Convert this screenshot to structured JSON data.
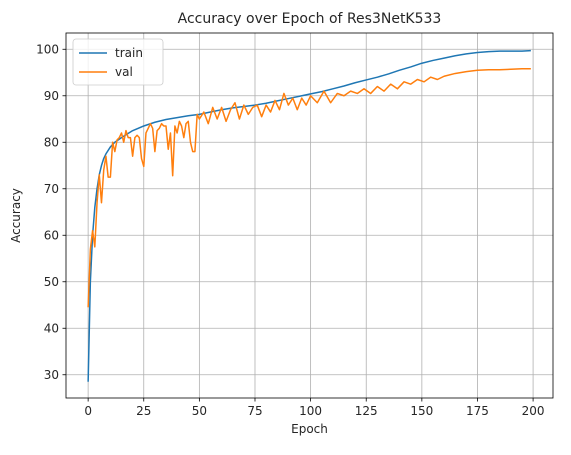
{
  "chart_data": {
    "type": "line",
    "title": "Accuracy over Epoch of Res3NetK533",
    "xlabel": "Epoch",
    "ylabel": "Accuracy",
    "xlim": [
      -9.95,
      208.95
    ],
    "ylim": [
      25.0,
      103.5
    ],
    "xticks": [
      0,
      25,
      50,
      75,
      100,
      125,
      150,
      175,
      200
    ],
    "yticks": [
      30,
      40,
      50,
      60,
      70,
      80,
      90,
      100
    ],
    "grid": true,
    "legend_position": "top-left",
    "series": [
      {
        "name": "train",
        "color": "#1f77b4",
        "x": [
          0,
          1,
          2,
          3,
          4,
          5,
          6,
          7,
          8,
          10,
          12,
          15,
          20,
          25,
          30,
          35,
          40,
          45,
          50,
          55,
          60,
          65,
          70,
          75,
          80,
          85,
          90,
          95,
          100,
          105,
          110,
          115,
          120,
          125,
          130,
          135,
          140,
          145,
          150,
          155,
          160,
          165,
          170,
          175,
          180,
          185,
          190,
          195,
          199
        ],
        "y": [
          28.5,
          50.0,
          60.0,
          66.0,
          70.0,
          73.0,
          75.0,
          76.5,
          77.5,
          79.0,
          80.0,
          81.0,
          82.5,
          83.5,
          84.3,
          84.9,
          85.3,
          85.7,
          86.0,
          86.5,
          87.0,
          87.4,
          87.7,
          88.0,
          88.4,
          88.9,
          89.4,
          89.9,
          90.4,
          90.9,
          91.5,
          92.1,
          92.8,
          93.4,
          94.0,
          94.7,
          95.5,
          96.2,
          97.0,
          97.6,
          98.1,
          98.6,
          99.0,
          99.3,
          99.5,
          99.6,
          99.6,
          99.6,
          99.7
        ]
      },
      {
        "name": "val",
        "color": "#ff7f0e",
        "x": [
          0,
          1,
          2,
          3,
          4,
          5,
          6,
          7,
          8,
          9,
          10,
          11,
          12,
          13,
          14,
          15,
          16,
          17,
          18,
          19,
          20,
          21,
          22,
          23,
          24,
          25,
          26,
          27,
          28,
          29,
          30,
          31,
          32,
          33,
          34,
          35,
          36,
          37,
          38,
          39,
          40,
          41,
          42,
          43,
          44,
          45,
          46,
          47,
          48,
          49,
          50,
          52,
          54,
          56,
          58,
          60,
          62,
          64,
          66,
          68,
          70,
          72,
          74,
          76,
          78,
          80,
          82,
          84,
          86,
          88,
          90,
          92,
          94,
          96,
          98,
          100,
          103,
          106,
          109,
          112,
          115,
          118,
          121,
          124,
          127,
          130,
          133,
          136,
          139,
          142,
          145,
          148,
          151,
          154,
          157,
          160,
          165,
          170,
          175,
          180,
          185,
          190,
          195,
          199
        ],
        "y": [
          44.5,
          57.0,
          61.0,
          57.5,
          67.0,
          73.0,
          67.0,
          74.0,
          77.0,
          72.5,
          72.5,
          80.0,
          78.0,
          80.5,
          81.0,
          82.0,
          80.0,
          82.5,
          81.0,
          81.0,
          77.0,
          81.0,
          81.5,
          81.0,
          76.5,
          74.8,
          82.0,
          83.0,
          84.0,
          83.0,
          78.0,
          82.5,
          83.0,
          84.0,
          83.5,
          83.5,
          78.5,
          82.0,
          72.8,
          83.5,
          82.0,
          84.5,
          83.5,
          81.0,
          84.0,
          84.5,
          80.0,
          78.0,
          78.0,
          86.0,
          85.0,
          86.5,
          84.0,
          87.5,
          85.0,
          87.5,
          84.5,
          87.0,
          88.5,
          85.0,
          88.0,
          86.0,
          87.5,
          88.0,
          85.5,
          88.0,
          86.5,
          89.0,
          87.0,
          90.5,
          88.0,
          89.5,
          87.0,
          89.5,
          88.0,
          90.0,
          88.5,
          91.0,
          88.5,
          90.5,
          90.0,
          91.0,
          90.5,
          91.5,
          90.5,
          92.0,
          91.0,
          92.5,
          91.5,
          93.0,
          92.5,
          93.5,
          93.0,
          94.0,
          93.5,
          94.2,
          94.8,
          95.2,
          95.5,
          95.6,
          95.6,
          95.7,
          95.8,
          95.8
        ]
      }
    ]
  }
}
